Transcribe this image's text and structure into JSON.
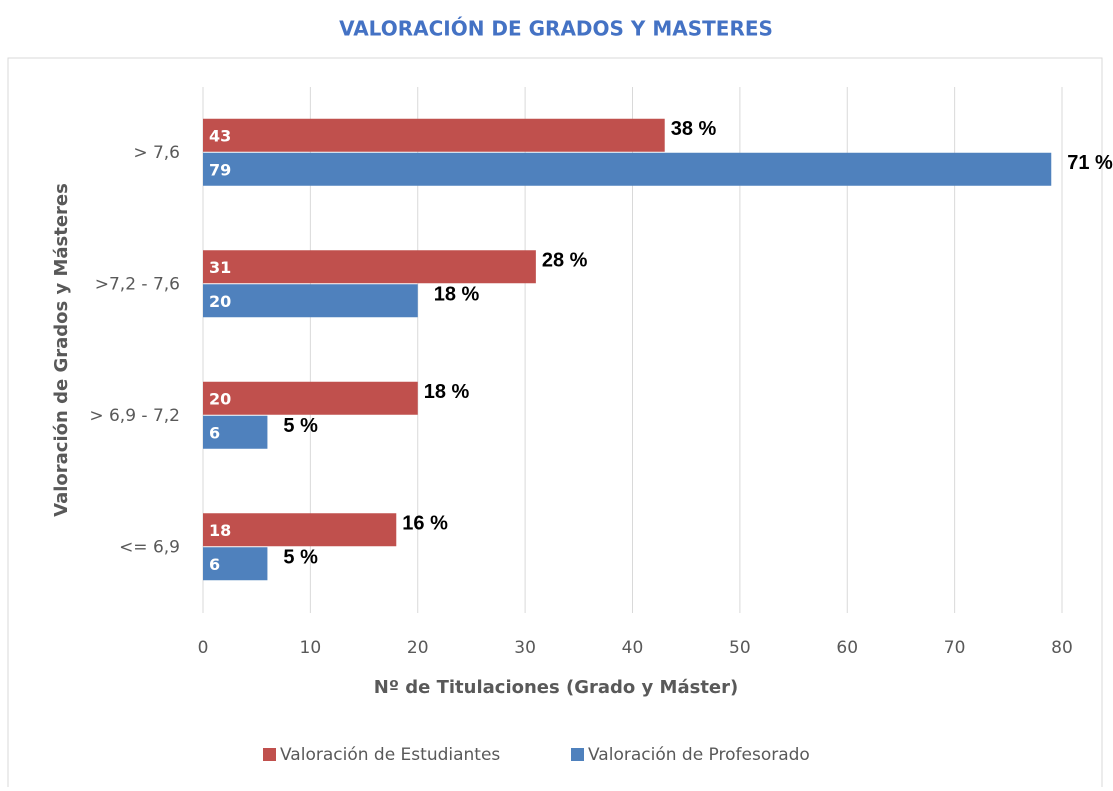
{
  "chart_data": {
    "type": "hbar",
    "title": "VALORACIÓN DE GRADOS Y MASTERES",
    "x_label": "Nº de Titulaciones (Grado y Máster)",
    "y_label": "Valoración de Grados y Másteres",
    "categories": [
      "> 7,6",
      ">7,2 - 7,6",
      "> 6,9 - 7,2",
      "<= 6,9"
    ],
    "series": [
      {
        "name": "Valoración de Estudiantes",
        "color": "#c0504d",
        "values": [
          43,
          31,
          20,
          18
        ],
        "share_labels": [
          "38 %",
          "28 %",
          "18 %",
          "16 %"
        ]
      },
      {
        "name": "Valoración de Profesorado",
        "color": "#4f81bd",
        "values": [
          79,
          20,
          6,
          6
        ],
        "share_labels": [
          "71 %",
          "18 %",
          "5 %",
          "5 %"
        ]
      }
    ],
    "xlim": [
      0,
      80
    ],
    "xticks": [
      0,
      10,
      20,
      30,
      40,
      50,
      60,
      70,
      80
    ],
    "grid": true,
    "legend": "bottom"
  }
}
